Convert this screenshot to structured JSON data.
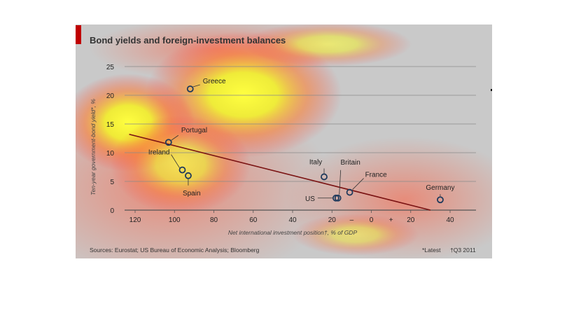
{
  "chart_data": {
    "type": "scatter",
    "title": "Bond yields and foreign-investment balances",
    "ylabel": "Ten-year government-bond yield*, %",
    "xlabel": "Net international investment position†, % of GDP",
    "x_reversed": true,
    "x_ticks": [
      "120",
      "100",
      "80",
      "60",
      "40",
      "20",
      "–",
      "0",
      "+",
      "20",
      "40"
    ],
    "y_ticks": [
      "0",
      "5",
      "10",
      "15",
      "20",
      "25"
    ],
    "ylim": [
      0,
      27
    ],
    "xlim": [
      -120,
      40
    ],
    "grid": true,
    "points": [
      {
        "label": "Greece",
        "x": -92,
        "y": 21.1
      },
      {
        "label": "Portugal",
        "x": -103,
        "y": 11.8
      },
      {
        "label": "Ireland",
        "x": -96,
        "y": 7.0
      },
      {
        "label": "Spain",
        "x": -93,
        "y": 6.0
      },
      {
        "label": "Italy",
        "x": -24,
        "y": 5.8
      },
      {
        "label": "Britain",
        "x": -17,
        "y": 2.1
      },
      {
        "label": "US",
        "x": -18,
        "y": 2.1
      },
      {
        "label": "France",
        "x": -11,
        "y": 3.1
      },
      {
        "label": "Germany",
        "x": 35,
        "y": 1.8
      }
    ],
    "trend_line": {
      "x": [
        -123,
        30
      ],
      "y": [
        13.2,
        0
      ]
    },
    "sources": "Sources: Eurostat; US Bureau of Economic Analysis; Bloomberg",
    "notes": [
      "*Latest",
      "†Q3 2011"
    ],
    "colors": {
      "accent": "#c00000",
      "trend": "#7a1212",
      "points": "#1f3a5c"
    }
  }
}
